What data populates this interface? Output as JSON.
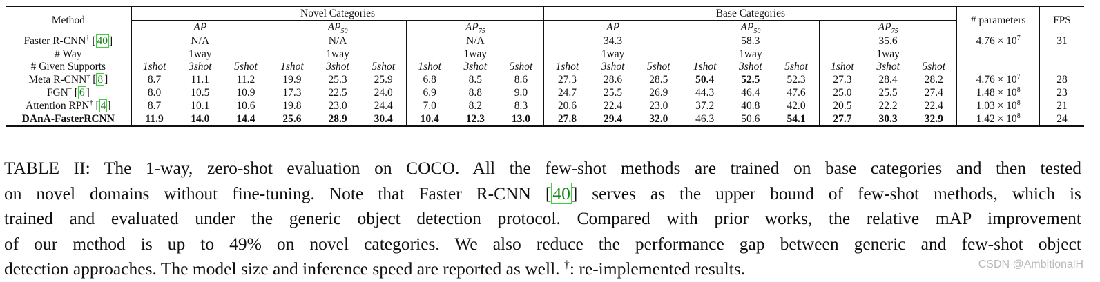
{
  "table": {
    "header": {
      "method": "Method",
      "novel": "Novel Categories",
      "base": "Base Categories",
      "params": "# parameters",
      "fps": "FPS",
      "metrics": [
        "AP",
        "AP",
        "AP",
        "AP",
        "AP",
        "AP"
      ],
      "metric_subs": [
        "",
        "50",
        "75",
        "",
        "50",
        "75"
      ]
    },
    "faster": {
      "name": "Faster R-CNN",
      "dagger": "†",
      "ref": "40",
      "novel": [
        "N/A",
        "N/A",
        "N/A"
      ],
      "base": [
        "34.3",
        "58.3",
        "35.6"
      ],
      "params_mant": "4.76 × 10",
      "params_exp": "7",
      "fps": "31"
    },
    "way_label": "# Way",
    "way_value": "1way",
    "supports_label": "# Given Supports",
    "shots": [
      "1shot",
      "3shot",
      "5shot"
    ],
    "rows": [
      {
        "name": "Meta R-CNN",
        "dagger": "†",
        "ref": "8",
        "values": [
          "8.7",
          "11.1",
          "11.2",
          "19.9",
          "25.3",
          "25.9",
          "6.8",
          "8.5",
          "8.6",
          "27.3",
          "28.6",
          "28.5",
          "50.4",
          "52.5",
          "52.3",
          "27.3",
          "28.4",
          "28.2"
        ],
        "bold": [
          false,
          false,
          false,
          false,
          false,
          false,
          false,
          false,
          false,
          false,
          false,
          false,
          true,
          true,
          false,
          false,
          false,
          false
        ],
        "params_mant": "4.76 × 10",
        "params_exp": "7",
        "fps": "28"
      },
      {
        "name": "FGN",
        "dagger": "†",
        "ref": "6",
        "values": [
          "8.0",
          "10.5",
          "10.9",
          "17.3",
          "22.5",
          "24.0",
          "6.9",
          "8.8",
          "9.0",
          "24.7",
          "25.5",
          "26.9",
          "44.3",
          "46.4",
          "47.6",
          "25.0",
          "25.5",
          "27.4"
        ],
        "bold": [
          false,
          false,
          false,
          false,
          false,
          false,
          false,
          false,
          false,
          false,
          false,
          false,
          false,
          false,
          false,
          false,
          false,
          false
        ],
        "params_mant": "1.48 × 10",
        "params_exp": "8",
        "fps": "23"
      },
      {
        "name": "Attention RPN",
        "dagger": "†",
        "ref": "4",
        "values": [
          "8.7",
          "10.1",
          "10.6",
          "19.8",
          "23.0",
          "24.4",
          "7.0",
          "8.2",
          "8.3",
          "20.6",
          "22.4",
          "23.0",
          "37.2",
          "40.8",
          "42.0",
          "20.5",
          "22.2",
          "22.4"
        ],
        "bold": [
          false,
          false,
          false,
          false,
          false,
          false,
          false,
          false,
          false,
          false,
          false,
          false,
          false,
          false,
          false,
          false,
          false,
          false
        ],
        "params_mant": "1.03 × 10",
        "params_exp": "8",
        "fps": "21"
      },
      {
        "name": "DAnA-FasterRCNN",
        "dagger": "",
        "ref": "",
        "values": [
          "11.9",
          "14.0",
          "14.4",
          "25.6",
          "28.9",
          "30.4",
          "10.4",
          "12.3",
          "13.0",
          "27.8",
          "29.4",
          "32.0",
          "46.3",
          "50.6",
          "54.1",
          "27.7",
          "30.3",
          "32.9"
        ],
        "bold": [
          true,
          true,
          true,
          true,
          true,
          true,
          true,
          true,
          true,
          true,
          true,
          true,
          false,
          false,
          true,
          true,
          true,
          true
        ],
        "params_mant": "1.42 × 10",
        "params_exp": "8",
        "fps": "24"
      }
    ]
  },
  "caption": {
    "line1": "TABLE II: The 1-way, zero-shot evaluation on COCO. All the few-shot methods are trained on base categories and then tested",
    "line2a": "on novel domains without fine-tuning. Note that Faster R-CNN [",
    "line2ref": "40",
    "line2b": "] serves as the upper bound of few-shot methods, which is",
    "line3": "trained and evaluated under the generic object detection protocol. Compared with prior works, the relative mAP improvement",
    "line4": "of our method is up to 49% on novel categories. We also reduce the performance gap between generic and few-shot object",
    "line5a": "detection approaches. The model size and inference speed are reported as well. ",
    "line5dagger": "†",
    "line5b": ": re-implemented results."
  },
  "watermark": "CSDN @AmbitionalH"
}
